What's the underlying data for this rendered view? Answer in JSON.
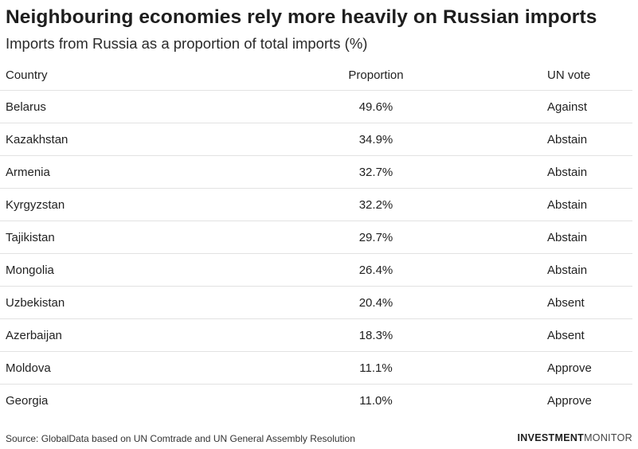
{
  "title": "Neighbouring economies rely more heavily on Russian imports",
  "subtitle": "Imports from Russia as a proportion of total imports (%)",
  "chart_data": {
    "type": "table",
    "columns": [
      "Country",
      "Proportion",
      "UN vote"
    ],
    "rows": [
      {
        "country": "Belarus",
        "proportion": "49.6%",
        "vote": "Against"
      },
      {
        "country": "Kazakhstan",
        "proportion": "34.9%",
        "vote": "Abstain"
      },
      {
        "country": "Armenia",
        "proportion": "32.7%",
        "vote": "Abstain"
      },
      {
        "country": "Kyrgyzstan",
        "proportion": "32.2%",
        "vote": "Abstain"
      },
      {
        "country": "Tajikistan",
        "proportion": "29.7%",
        "vote": "Abstain"
      },
      {
        "country": "Mongolia",
        "proportion": "26.4%",
        "vote": "Abstain"
      },
      {
        "country": "Uzbekistan",
        "proportion": "20.4%",
        "vote": "Absent"
      },
      {
        "country": "Azerbaijan",
        "proportion": "18.3%",
        "vote": "Absent"
      },
      {
        "country": "Moldova",
        "proportion": "11.1%",
        "vote": "Approve"
      },
      {
        "country": "Georgia",
        "proportion": "11.0%",
        "vote": "Approve"
      }
    ]
  },
  "footer": {
    "source": "Source: GlobalData based on UN Comtrade and UN General Assembly Resolution",
    "logo_bold": "INVESTMENT",
    "logo_light": "MONITOR"
  }
}
